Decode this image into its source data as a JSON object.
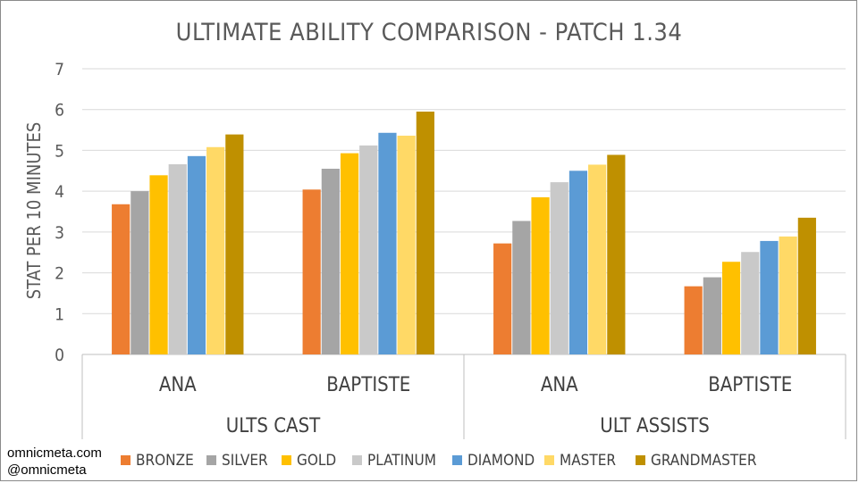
{
  "credits": {
    "site": "omnicmeta.com",
    "handle": "@omnicmeta"
  },
  "chart_data": {
    "type": "bar",
    "title": "ULTIMATE ABILITY COMPARISON - PATCH 1.34",
    "ylabel": "STAT PER 10 MINUTES",
    "xlabel": "",
    "ylim": [
      0,
      7
    ],
    "yticks": [
      0,
      1,
      2,
      3,
      4,
      5,
      6,
      7
    ],
    "grid": true,
    "legend_position": "bottom",
    "groups": [
      {
        "label": "ULTS CAST",
        "categories": [
          "ANA",
          "BAPTISTE"
        ]
      },
      {
        "label": "ULT ASSISTS",
        "categories": [
          "ANA",
          "BAPTISTE"
        ]
      }
    ],
    "categories": [
      "ANA",
      "BAPTISTE",
      "ANA",
      "BAPTISTE"
    ],
    "series": [
      {
        "name": "BRONZE",
        "color": "#ED7D31",
        "values": [
          3.68,
          4.04,
          2.72,
          1.67
        ]
      },
      {
        "name": "SILVER",
        "color": "#A5A5A5",
        "values": [
          4.0,
          4.55,
          3.27,
          1.89
        ]
      },
      {
        "name": "GOLD",
        "color": "#FFC000",
        "values": [
          4.39,
          4.93,
          3.85,
          2.27
        ]
      },
      {
        "name": "PLATINUM",
        "color": "#C9C9C9",
        "values": [
          4.66,
          5.12,
          4.22,
          2.51
        ]
      },
      {
        "name": "DIAMOND",
        "color": "#5B9BD5",
        "values": [
          4.86,
          5.43,
          4.5,
          2.78
        ]
      },
      {
        "name": "MASTER",
        "color": "#FFD966",
        "values": [
          5.08,
          5.36,
          4.65,
          2.89
        ]
      },
      {
        "name": "GRANDMASTER",
        "color": "#BF9000",
        "values": [
          5.39,
          5.95,
          4.89,
          3.35
        ]
      }
    ]
  }
}
